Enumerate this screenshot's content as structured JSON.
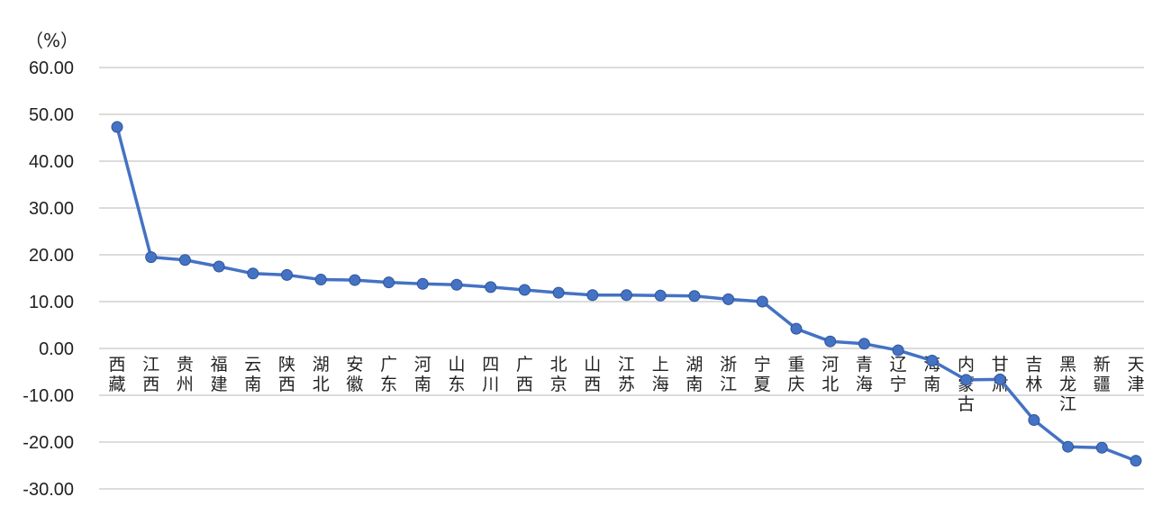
{
  "chart_data": {
    "type": "line",
    "unit_label": "（%）",
    "ylim": [
      -30,
      60
    ],
    "yticks": [
      "60.00",
      "50.00",
      "40.00",
      "30.00",
      "20.00",
      "10.00",
      "0.00",
      "-10.00",
      "-20.00",
      "-30.00"
    ],
    "ytick_values": [
      60,
      50,
      40,
      30,
      20,
      10,
      0,
      -10,
      -20,
      -30
    ],
    "grid": true,
    "series_color": "#4472c4",
    "categories": [
      "西藏",
      "江西",
      "贵州",
      "福建",
      "云南",
      "陕西",
      "湖北",
      "安徽",
      "广东",
      "河南",
      "山东",
      "四川",
      "广西",
      "北京",
      "山西",
      "江苏",
      "上海",
      "湖南",
      "浙江",
      "宁夏",
      "重庆",
      "河北",
      "青海",
      "辽宁",
      "海南",
      "内蒙古",
      "甘肃",
      "吉林",
      "黑龙江",
      "新疆",
      "天津"
    ],
    "values": [
      47.3,
      19.5,
      18.9,
      17.5,
      16.0,
      15.7,
      14.7,
      14.6,
      14.1,
      13.8,
      13.6,
      13.1,
      12.5,
      11.9,
      11.4,
      11.4,
      11.3,
      11.2,
      10.5,
      10.0,
      4.2,
      1.5,
      1.0,
      -0.4,
      -2.6,
      -6.7,
      -6.6,
      -15.3,
      -21.0,
      -21.2,
      -24.0
    ]
  }
}
